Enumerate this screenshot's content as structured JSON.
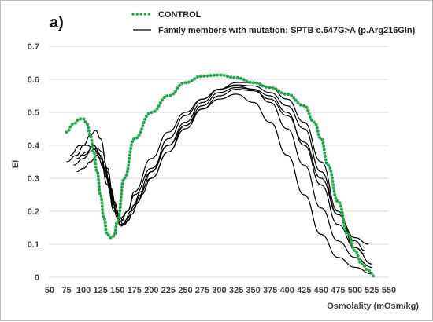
{
  "chart_data": {
    "type": "line",
    "panel_label": "a)",
    "xlabel": "Osmolality (mOsm/kg)",
    "ylabel": "EI",
    "xlim": [
      50,
      550
    ],
    "ylim": [
      0,
      0.7
    ],
    "xticks": [
      50,
      75,
      100,
      125,
      150,
      175,
      200,
      225,
      250,
      275,
      300,
      325,
      350,
      375,
      400,
      425,
      450,
      475,
      500,
      525,
      550
    ],
    "yticks": [
      0,
      0.1,
      0.2,
      0.3,
      0.4,
      0.5,
      0.6,
      0.7
    ],
    "ytick_labels": [
      "0",
      "0.1",
      "0.2",
      "0.3",
      "0.4",
      "0.5",
      "0.6",
      "0.7"
    ],
    "grid": "horizontal",
    "legend": [
      {
        "label": "CONTROL",
        "style": "dotted",
        "color": "#22a84a"
      },
      {
        "label": "Family members with mutation: SPTB  c.647G>A (p.Arg216Gln)",
        "style": "solid",
        "color": "#000000"
      }
    ],
    "series": [
      {
        "style": "dotted",
        "color": "#22a84a",
        "x": [
          75,
          85,
          95,
          100,
          105,
          110,
          115,
          120,
          125,
          130,
          135,
          140,
          145,
          150,
          160,
          175,
          200,
          225,
          250,
          275,
          300,
          325,
          350,
          375,
          400,
          425,
          440,
          450,
          460,
          475,
          490,
          500,
          510,
          520,
          530
        ],
        "y": [
          0.44,
          0.465,
          0.48,
          0.48,
          0.465,
          0.43,
          0.38,
          0.32,
          0.25,
          0.18,
          0.13,
          0.12,
          0.125,
          0.17,
          0.3,
          0.42,
          0.5,
          0.55,
          0.59,
          0.61,
          0.613,
          0.605,
          0.59,
          0.575,
          0.555,
          0.52,
          0.47,
          0.42,
          0.34,
          0.23,
          0.13,
          0.08,
          0.04,
          0.02,
          0.0
        ]
      },
      {
        "style": "solid",
        "color": "#000000",
        "x": [
          75,
          90,
          100,
          110,
          118,
          125,
          135,
          145,
          155,
          165,
          175,
          200,
          225,
          250,
          275,
          300,
          325,
          350,
          375,
          400,
          425,
          450,
          475,
          500,
          525
        ],
        "y": [
          0.35,
          0.37,
          0.4,
          0.43,
          0.445,
          0.42,
          0.33,
          0.22,
          0.18,
          0.2,
          0.25,
          0.33,
          0.4,
          0.46,
          0.51,
          0.54,
          0.555,
          0.53,
          0.47,
          0.37,
          0.25,
          0.13,
          0.06,
          0.03,
          0.01
        ]
      },
      {
        "style": "solid",
        "color": "#000000",
        "x": [
          80,
          95,
          105,
          115,
          125,
          135,
          145,
          155,
          165,
          175,
          200,
          225,
          250,
          275,
          300,
          325,
          350,
          375,
          400,
          425,
          450,
          475,
          500,
          525
        ],
        "y": [
          0.37,
          0.4,
          0.4,
          0.39,
          0.36,
          0.28,
          0.2,
          0.17,
          0.2,
          0.26,
          0.36,
          0.44,
          0.5,
          0.54,
          0.57,
          0.58,
          0.57,
          0.53,
          0.45,
          0.34,
          0.21,
          0.11,
          0.06,
          0.03
        ]
      },
      {
        "style": "solid",
        "color": "#000000",
        "x": [
          85,
          100,
          110,
          120,
          128,
          135,
          145,
          155,
          165,
          175,
          200,
          225,
          250,
          275,
          300,
          325,
          350,
          375,
          400,
          425,
          450,
          475,
          500,
          515
        ],
        "y": [
          0.34,
          0.36,
          0.38,
          0.39,
          0.38,
          0.32,
          0.23,
          0.16,
          0.17,
          0.22,
          0.32,
          0.42,
          0.49,
          0.54,
          0.57,
          0.583,
          0.58,
          0.56,
          0.52,
          0.45,
          0.32,
          0.19,
          0.11,
          0.08
        ]
      },
      {
        "style": "solid",
        "color": "#000000",
        "x": [
          90,
          100,
          110,
          120,
          130,
          140,
          150,
          160,
          170,
          185,
          200,
          225,
          250,
          275,
          300,
          325,
          350,
          375,
          400,
          425,
          450,
          475,
          500,
          515
        ],
        "y": [
          0.32,
          0.33,
          0.35,
          0.37,
          0.33,
          0.26,
          0.18,
          0.16,
          0.19,
          0.25,
          0.3,
          0.38,
          0.46,
          0.52,
          0.56,
          0.575,
          0.57,
          0.55,
          0.5,
          0.4,
          0.28,
          0.16,
          0.09,
          0.07
        ]
      },
      {
        "style": "solid",
        "color": "#000000",
        "x": [
          95,
          105,
          115,
          125,
          135,
          145,
          155,
          165,
          175,
          200,
          225,
          250,
          275,
          300,
          325,
          350,
          375,
          400,
          425,
          450,
          475,
          500,
          520
        ],
        "y": [
          0.37,
          0.38,
          0.4,
          0.37,
          0.3,
          0.21,
          0.155,
          0.17,
          0.22,
          0.3,
          0.38,
          0.45,
          0.51,
          0.55,
          0.57,
          0.565,
          0.54,
          0.49,
          0.41,
          0.3,
          0.19,
          0.12,
          0.1
        ]
      },
      {
        "style": "solid",
        "color": "#000000",
        "x": [
          90,
          100,
          110,
          120,
          130,
          140,
          150,
          160,
          170,
          185,
          200,
          225,
          250,
          275,
          300,
          325,
          350,
          375,
          400,
          425,
          450,
          475,
          500,
          525
        ],
        "y": [
          0.36,
          0.37,
          0.38,
          0.38,
          0.35,
          0.27,
          0.19,
          0.17,
          0.2,
          0.26,
          0.32,
          0.4,
          0.47,
          0.53,
          0.57,
          0.59,
          0.59,
          0.575,
          0.54,
          0.47,
          0.35,
          0.2,
          0.09,
          0.04
        ]
      }
    ]
  }
}
